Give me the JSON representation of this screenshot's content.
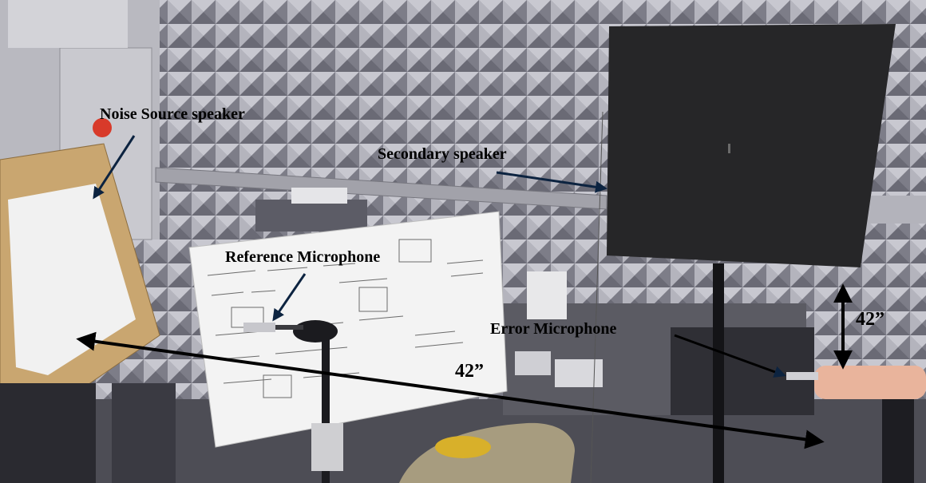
{
  "labels": {
    "noise_source_speaker": "Noise Source speaker",
    "secondary_speaker": "Secondary speaker",
    "reference_microphone": "Reference Microphone",
    "error_microphone": "Error Microphone",
    "horizontal_distance": "42”",
    "vertical_distance": "42”"
  },
  "colors": {
    "foam_wall": "#9a9aa4",
    "annotation": "#000000",
    "speaker_panel": "#262628",
    "whiteboard": "#f3f3f3",
    "wood_frame": "#c9a670"
  }
}
